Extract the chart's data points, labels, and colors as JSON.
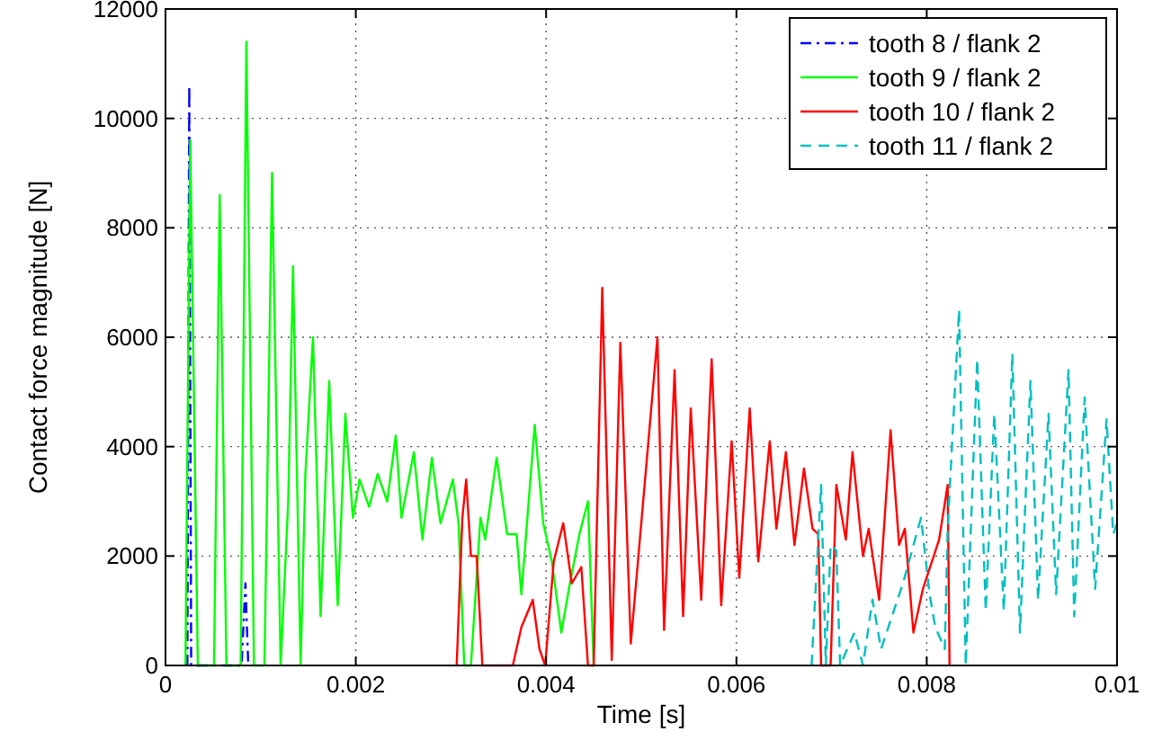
{
  "chart_data": {
    "type": "line",
    "xlabel": "Time [s]",
    "ylabel": "Contact force magnitude [N]",
    "xlim": [
      0,
      0.01
    ],
    "ylim": [
      0,
      12000
    ],
    "xticks": [
      0,
      0.002,
      0.004,
      0.006,
      0.008,
      0.01
    ],
    "yticks": [
      0,
      2000,
      4000,
      6000,
      8000,
      10000,
      12000
    ],
    "grid": true,
    "legend": "top right",
    "series": [
      {
        "name": "tooth 8 / flank 2",
        "color": "#0000ff",
        "line_style": "dashdot",
        "x": [
          0.00023,
          0.00025,
          0.00027,
          0.0008,
          0.00084,
          0.00087
        ],
        "values": [
          0,
          10600,
          0,
          0,
          1500,
          0
        ]
      },
      {
        "name": "tooth 9 / flank 2",
        "color": "#00ff00",
        "line_style": "solid",
        "x": [
          0.00021,
          0.00026,
          0.00034,
          0.00051,
          0.00057,
          0.00064,
          0.00079,
          0.00085,
          0.00093,
          0.00104,
          0.00112,
          0.00121,
          0.00129,
          0.00134,
          0.00142,
          0.00147,
          0.00155,
          0.00163,
          0.00172,
          0.00181,
          0.00189,
          0.00197,
          0.00204,
          0.00214,
          0.00223,
          0.00233,
          0.00242,
          0.00248,
          0.00261,
          0.0027,
          0.0028,
          0.00289,
          0.00302,
          0.00308,
          0.00314,
          0.00321,
          0.00331,
          0.00336,
          0.00348,
          0.00359,
          0.00369,
          0.00374,
          0.00388,
          0.00397,
          0.00406,
          0.00416,
          0.00425,
          0.00435,
          0.00444,
          0.0045
        ],
        "values": [
          0,
          9600,
          0,
          0,
          8600,
          0,
          0,
          11400,
          0,
          0,
          9000,
          0,
          3000,
          7300,
          0,
          3500,
          6000,
          900,
          5200,
          1100,
          4600,
          2700,
          3400,
          2900,
          3500,
          3000,
          4200,
          2700,
          3900,
          2300,
          3800,
          2600,
          3400,
          2600,
          0,
          0,
          2700,
          2300,
          3800,
          2400,
          2400,
          1300,
          4400,
          2600,
          1900,
          600,
          1500,
          2400,
          3000,
          0
        ]
      },
      {
        "name": "tooth 10 / flank 2",
        "color": "#ff0000",
        "line_style": "solid",
        "x": [
          0.00306,
          0.00312,
          0.00316,
          0.00321,
          0.00327,
          0.00333,
          0.00365,
          0.00374,
          0.00386,
          0.00393,
          0.00399,
          0.00408,
          0.00418,
          0.00427,
          0.00437,
          0.00444,
          0.0045,
          0.00459,
          0.00469,
          0.00478,
          0.00489,
          0.00517,
          0.00524,
          0.00535,
          0.00544,
          0.00552,
          0.00563,
          0.00574,
          0.00584,
          0.00595,
          0.00603,
          0.00614,
          0.00623,
          0.00635,
          0.00642,
          0.00652,
          0.00661,
          0.00671,
          0.0068,
          0.00686,
          0.00689,
          0.00699,
          0.00705,
          0.00715,
          0.00722,
          0.00733,
          0.00739,
          0.0075,
          0.00762,
          0.00771,
          0.00777,
          0.00786,
          0.00796,
          0.00813,
          0.00822,
          0.00824
        ],
        "values": [
          0,
          2700,
          3400,
          2000,
          2000,
          0,
          0,
          700,
          1200,
          300,
          0,
          1900,
          2600,
          1500,
          1800,
          0,
          0,
          6900,
          100,
          5900,
          400,
          6000,
          650,
          5400,
          900,
          4700,
          1200,
          5600,
          1100,
          4100,
          1600,
          4700,
          1900,
          4100,
          2500,
          3900,
          2200,
          3600,
          2500,
          2400,
          0,
          0,
          3300,
          2300,
          3900,
          2000,
          2500,
          1200,
          4300,
          2200,
          2500,
          600,
          1400,
          2300,
          3300,
          0
        ]
      },
      {
        "name": "tooth 11 / flank 2",
        "color": "#00bfbf",
        "line_style": "dashed",
        "x": [
          0.00679,
          0.00689,
          0.00694,
          0.00699,
          0.00705,
          0.00709,
          0.00724,
          0.00733,
          0.00743,
          0.00752,
          0.00775,
          0.00794,
          0.00803,
          0.00809,
          0.00819,
          0.00822,
          0.00834,
          0.00841,
          0.00853,
          0.00862,
          0.00871,
          0.00881,
          0.0089,
          0.00898,
          0.00909,
          0.00917,
          0.00928,
          0.00936,
          0.00949,
          0.00955,
          0.00966,
          0.00977,
          0.00989,
          0.00996,
          0.01
        ],
        "values": [
          0,
          3300,
          0,
          2200,
          2100,
          0,
          600,
          0,
          1200,
          300,
          1500,
          2700,
          1300,
          700,
          300,
          2500,
          6500,
          0,
          5600,
          1000,
          4600,
          1000,
          5700,
          600,
          5200,
          1200,
          4600,
          1300,
          5400,
          900,
          4900,
          1400,
          4500,
          2400,
          2600
        ]
      }
    ]
  }
}
